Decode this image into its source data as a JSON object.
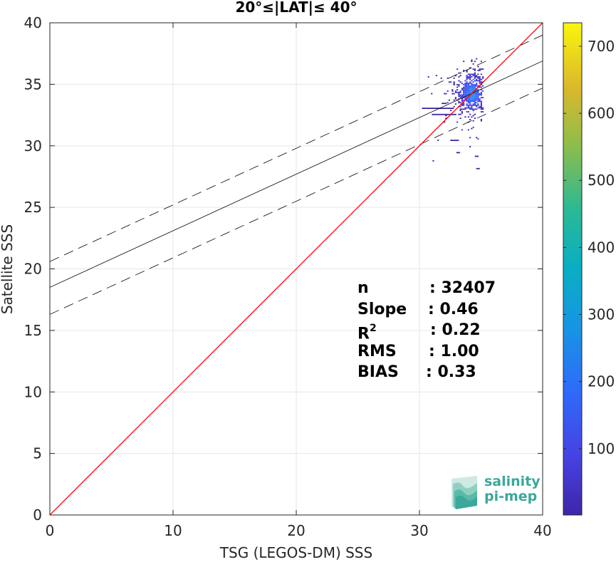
{
  "chart_data": {
    "type": "scatter",
    "title": "20°≤|LAT|≤ 40°",
    "xlabel": "TSG (LEGOS-DM) SSS",
    "ylabel": "Satellite SSS",
    "xlim": [
      0,
      40
    ],
    "ylim": [
      0,
      40
    ],
    "xticks": [
      0,
      10,
      20,
      30,
      40
    ],
    "yticks": [
      0,
      5,
      10,
      15,
      20,
      25,
      30,
      35,
      40
    ],
    "grid": true,
    "colorbar": {
      "ticks": [
        100,
        200,
        300,
        400,
        500,
        600,
        700
      ],
      "range": [
        1,
        735
      ],
      "colormap": "parula"
    },
    "reference_line": {
      "slope": 1,
      "intercept": 0,
      "color": "#ff0000"
    },
    "fit_line": {
      "slope": 0.46,
      "intercept": 18.5,
      "color": "#000000"
    },
    "fit_bounds": [
      {
        "slope": 0.46,
        "intercept": 20.6
      },
      {
        "slope": 0.46,
        "intercept": 16.3
      }
    ],
    "density_cluster": {
      "x_center": 34.2,
      "y_center": 34.3,
      "x_range": [
        29.5,
        35.2
      ],
      "y_range": [
        28.2,
        37.3
      ]
    },
    "stats": [
      {
        "label": "n",
        "value": ": 32407"
      },
      {
        "label": "Slope",
        "value": ": 0.46"
      },
      {
        "label": "R",
        "sup": "2",
        "value": ": 0.22"
      },
      {
        "label": "RMS",
        "value": ": 1.00"
      },
      {
        "label": "BIAS",
        "value": ": 0.33"
      }
    ]
  },
  "logo": {
    "line1": "salinity",
    "line2": "pi-mep",
    "icon": "salinity-waves-icon",
    "color": "#3aa89a"
  }
}
